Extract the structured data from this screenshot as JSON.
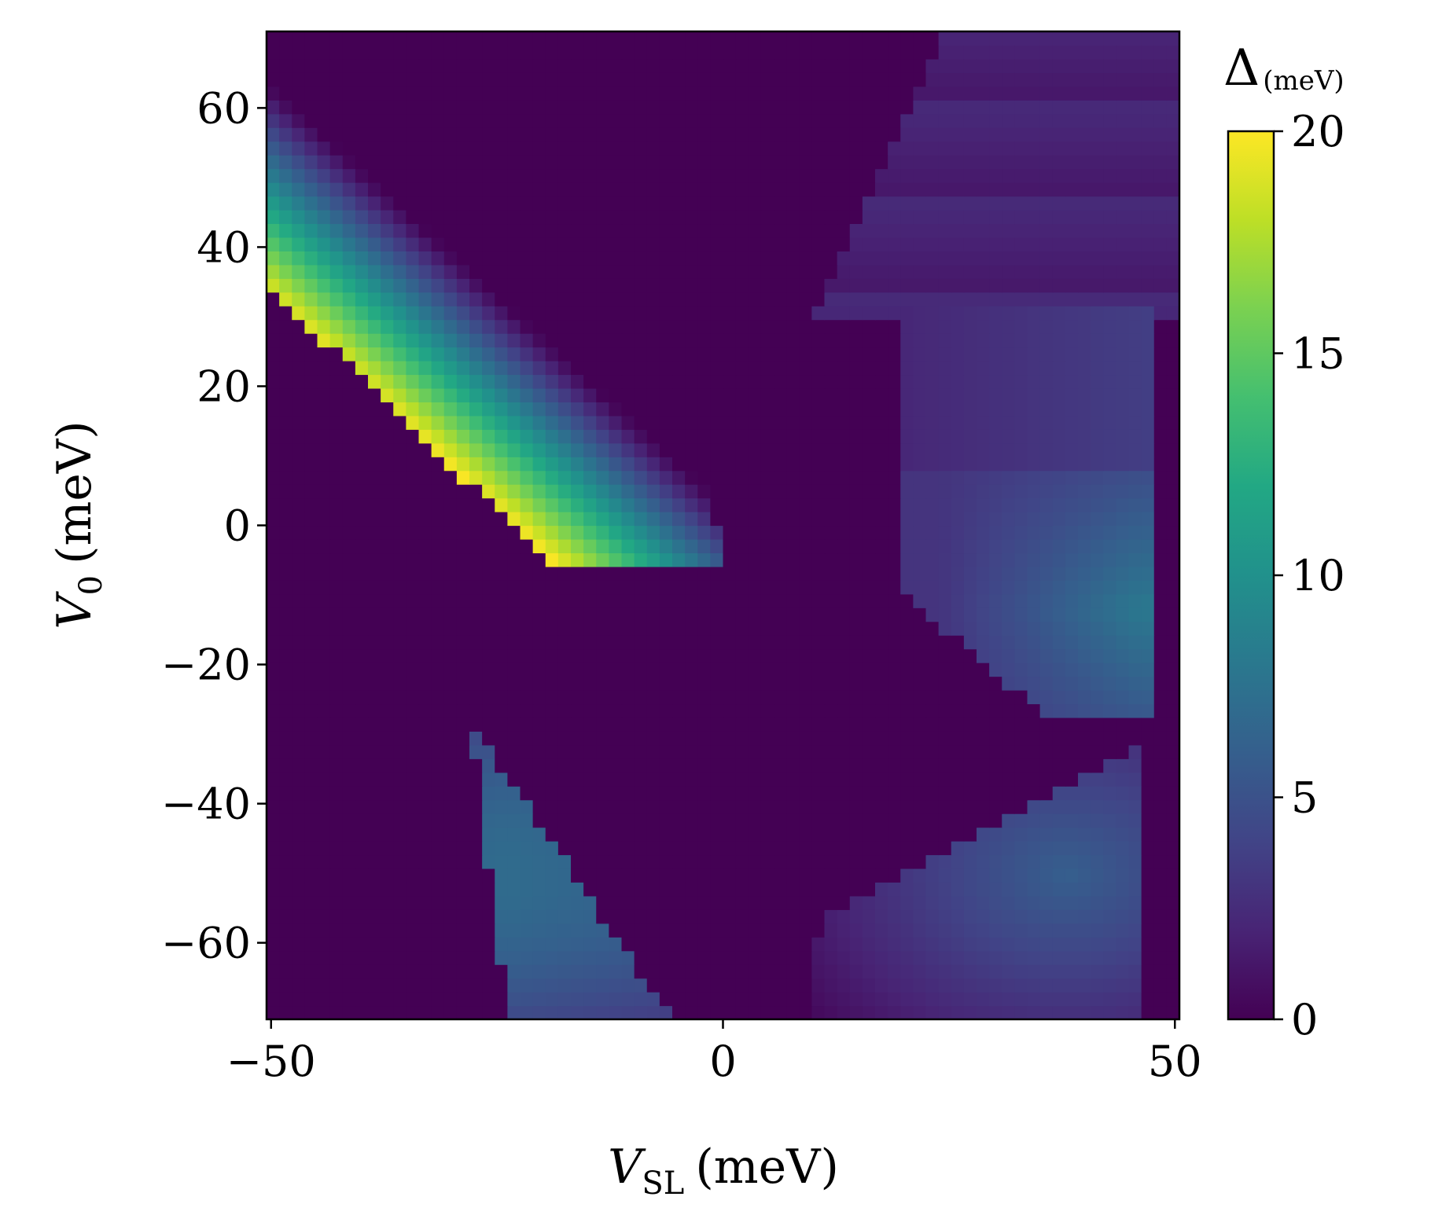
{
  "chart_data": {
    "type": "heatmap",
    "title": "",
    "xlabel": {
      "var": "V",
      "sub": "SL",
      "unit": "(meV)"
    },
    "ylabel": {
      "var": "V",
      "sub": "0",
      "unit": "(meV)"
    },
    "x_range": [
      -50.5,
      50.5
    ],
    "y_range": [
      -71,
      71
    ],
    "x_ticks": [
      {
        "value": -50,
        "label": "−50"
      },
      {
        "value": 0,
        "label": "0"
      },
      {
        "value": 50,
        "label": "50"
      }
    ],
    "y_ticks": [
      {
        "value": 60,
        "label": "60"
      },
      {
        "value": 40,
        "label": "40"
      },
      {
        "value": 20,
        "label": "20"
      },
      {
        "value": 0,
        "label": "0"
      },
      {
        "value": -20,
        "label": "−20"
      },
      {
        "value": -40,
        "label": "−40"
      },
      {
        "value": -60,
        "label": "−60"
      }
    ],
    "colorbar": {
      "label": {
        "symbol": "Δ",
        "unit": "(meV)"
      },
      "colormap": "viridis",
      "range": [
        0,
        20
      ],
      "ticks": [
        {
          "value": 0,
          "label": "0"
        },
        {
          "value": 5,
          "label": "5"
        },
        {
          "value": 10,
          "label": "10"
        },
        {
          "value": 15,
          "label": "15"
        },
        {
          "value": 20,
          "label": "20"
        }
      ]
    },
    "grid": false,
    "grid_resolution": {
      "nx": 72,
      "ny": 72
    },
    "regions": [
      {
        "name": "upper-left lobe",
        "x": [
          -50,
          -12
        ],
        "y": [
          -5,
          71
        ],
        "peak_value": 19.5,
        "peak_at": {
          "x": -50,
          "y": 58
        }
      },
      {
        "name": "lower-left lobe",
        "x": [
          -32,
          -12
        ],
        "y": [
          -71,
          -28
        ],
        "peak_value": 7,
        "peak_at": {
          "x": -24,
          "y": -50
        }
      },
      {
        "name": "right upper fan",
        "x": [
          18,
          50
        ],
        "y": [
          30,
          71
        ],
        "peak_value": 2.5
      },
      {
        "name": "right middle-upper",
        "x": [
          20,
          48
        ],
        "y": [
          8,
          32
        ],
        "peak_value": 4
      },
      {
        "name": "right middle",
        "x": [
          20,
          47
        ],
        "y": [
          -28,
          8
        ],
        "peak_value": 8,
        "peak_at": {
          "x": 45,
          "y": -12
        }
      },
      {
        "name": "right lower",
        "x": [
          10,
          46
        ],
        "y": [
          -71,
          -30
        ],
        "peak_value": 6,
        "peak_at": {
          "x": 38,
          "y": -50
        }
      }
    ]
  }
}
